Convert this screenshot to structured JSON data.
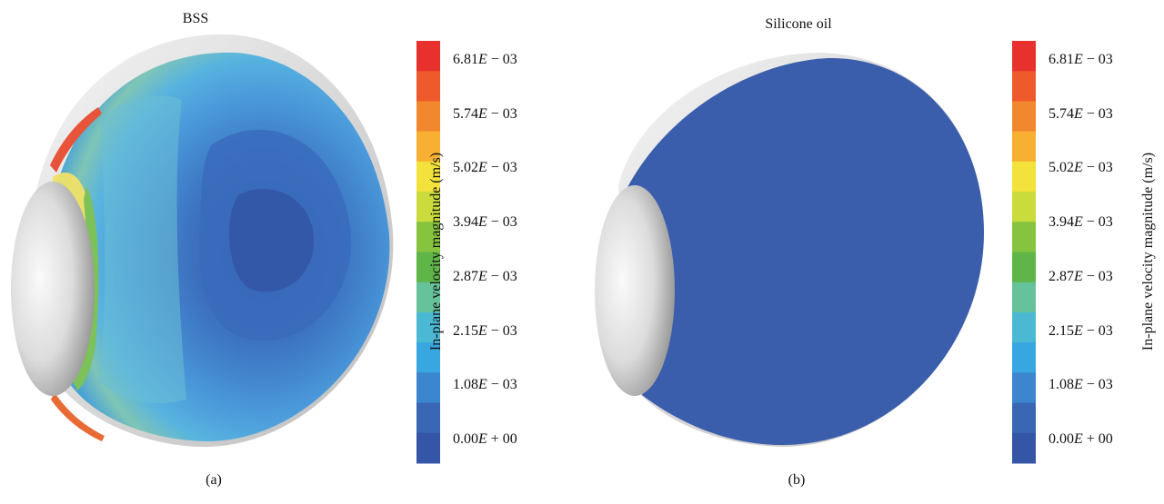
{
  "panels": [
    {
      "title": "BSS",
      "caption": "(a)",
      "colorbar": {
        "axis_label": "In-plane velocity magnitude (m/s)",
        "ticks": [
          {
            "mant": "6.81",
            "exp": " − 03"
          },
          {
            "mant": "5.74",
            "exp": " − 03"
          },
          {
            "mant": "5.02",
            "exp": " − 03"
          },
          {
            "mant": "3.94",
            "exp": " − 03"
          },
          {
            "mant": "2.87",
            "exp": " − 03"
          },
          {
            "mant": "2.15",
            "exp": " − 03"
          },
          {
            "mant": "1.08",
            "exp": " − 03"
          },
          {
            "mant": "0.00",
            "exp": " + 00"
          }
        ]
      }
    },
    {
      "title": "Silicone oil",
      "caption": "(b)",
      "colorbar": {
        "axis_label": "In-plane velocity magnitude (m/s)",
        "ticks": [
          {
            "mant": "6.81",
            "exp": " − 03"
          },
          {
            "mant": "5.74",
            "exp": " − 03"
          },
          {
            "mant": "5.02",
            "exp": " − 03"
          },
          {
            "mant": "3.94",
            "exp": " − 03"
          },
          {
            "mant": "2.87",
            "exp": " − 03"
          },
          {
            "mant": "2.15",
            "exp": " − 03"
          },
          {
            "mant": "1.08",
            "exp": " − 03"
          },
          {
            "mant": "0.00",
            "exp": " + 00"
          }
        ]
      }
    }
  ],
  "colormap": [
    "#e8312c",
    "#ee5a2c",
    "#f2882e",
    "#f7b032",
    "#f3e23b",
    "#c9dc3b",
    "#86c43f",
    "#5fb548",
    "#66c29a",
    "#4cb9d4",
    "#38a6e0",
    "#3b86cf",
    "#3a67b4",
    "#3555a6"
  ],
  "colors": {
    "bss_base": "#4d9fdf",
    "bss_mid": "#3f86cd",
    "bss_inner": "#3a73c0",
    "bss_core": "#3660b0",
    "oil_fill": "#3a5eab",
    "lens_light": "#f2f2f2",
    "lens_dark": "#9a9a9a"
  }
}
